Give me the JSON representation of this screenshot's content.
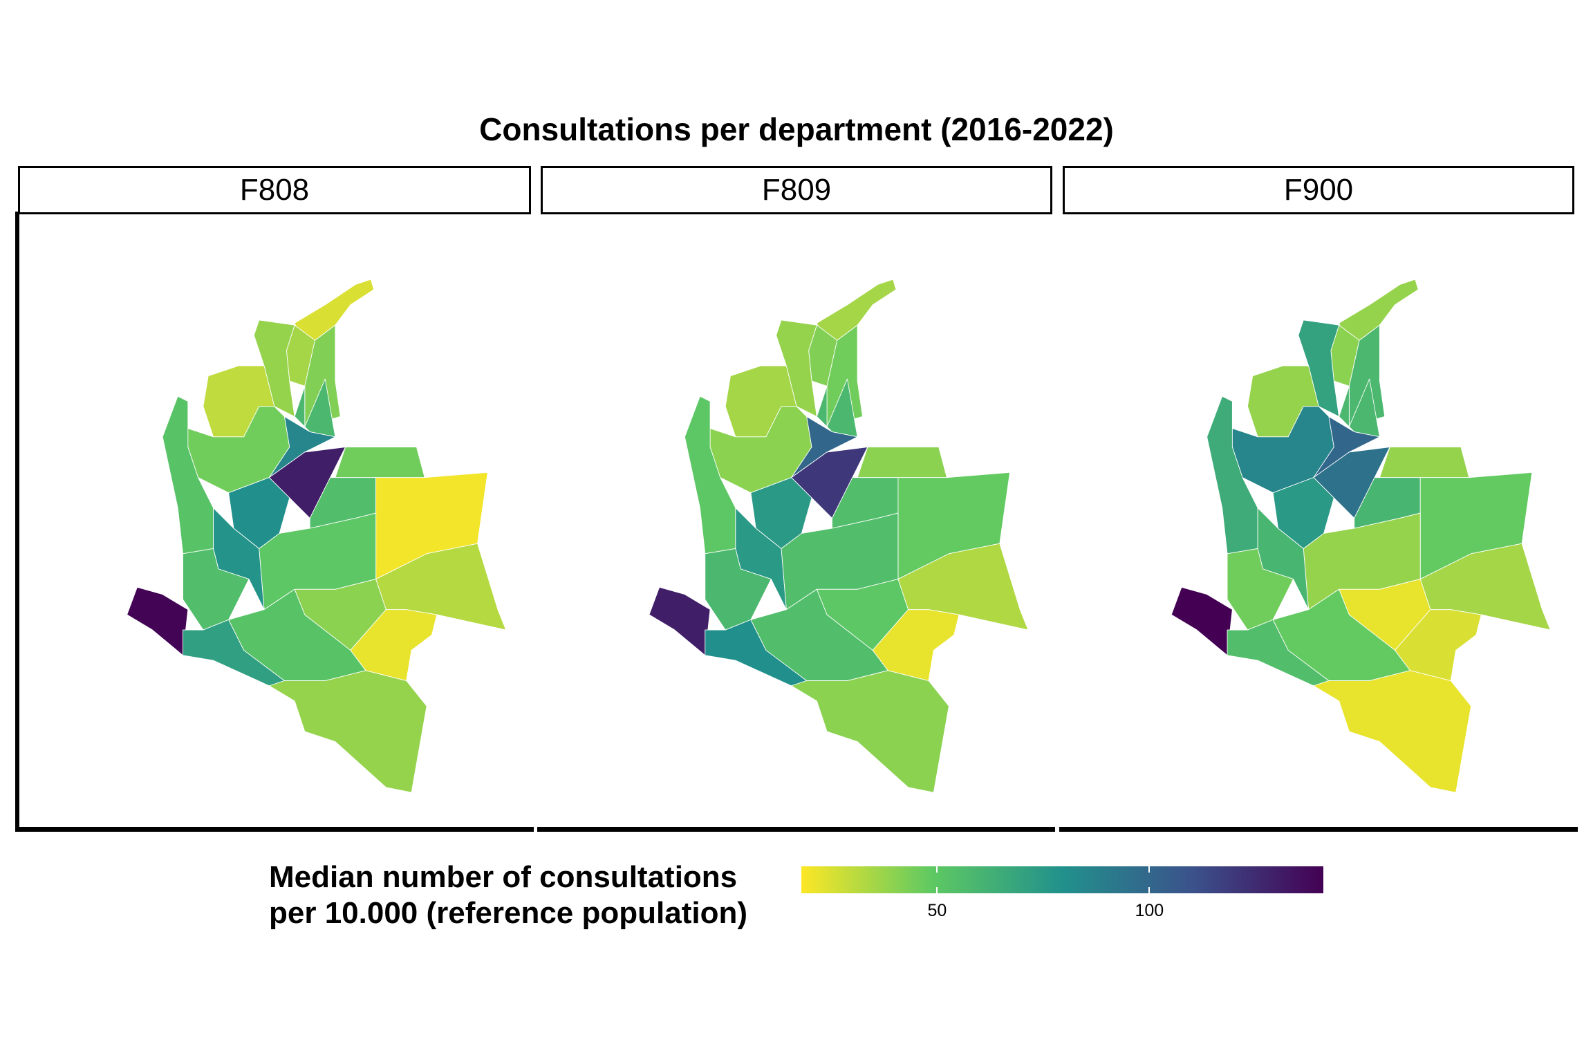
{
  "chart_data": {
    "type": "choropleth",
    "title": "Consultations per department (2016-2022)",
    "facets": [
      {
        "label": "F808",
        "values": [
          25,
          35,
          38,
          30,
          42,
          58,
          45,
          52,
          85,
          130,
          80,
          45,
          55,
          20,
          50,
          78,
          55,
          140,
          72,
          52,
          40,
          32,
          22,
          38
        ]
      },
      {
        "label": "F809",
        "values": [
          35,
          42,
          38,
          35,
          45,
          58,
          40,
          50,
          100,
          120,
          75,
          40,
          55,
          48,
          55,
          75,
          58,
          130,
          80,
          55,
          50,
          33,
          22,
          40
        ]
      },
      {
        "label": "F900",
        "values": [
          38,
          40,
          70,
          38,
          58,
          58,
          85,
          65,
          100,
          95,
          75,
          38,
          60,
          48,
          38,
          60,
          45,
          141,
          55,
          48,
          22,
          35,
          25,
          22
        ]
      }
    ],
    "legend": {
      "title_line1": "Median number of consultations",
      "title_line2": "per 10.000 (reference population)",
      "colormap": "viridis (reversed: low = yellow, high = purple)",
      "range": [
        18,
        141
      ],
      "ticks": [
        "50",
        "100"
      ],
      "tick_values": [
        50,
        100
      ],
      "placement": "bottom"
    },
    "colors": {
      "low": "#fde725",
      "high": "#440154",
      "border": "#ffffff"
    }
  }
}
